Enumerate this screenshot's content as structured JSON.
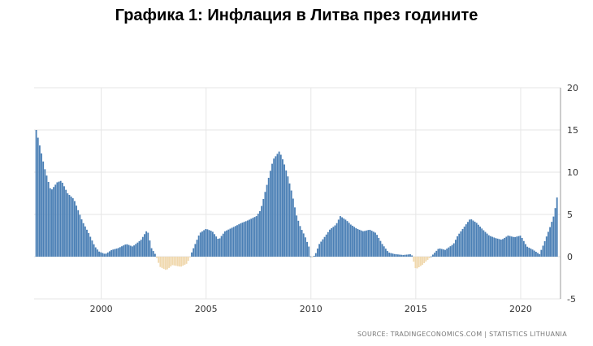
{
  "title": "Графика 1: Инфлация в Литва през годините",
  "source": "SOURCE: TRADINGECONOMICS.COM  |  STATISTICS LITHUANIA",
  "colors": {
    "positive": "#4a7fb5",
    "negative": "#f0d8ad",
    "grid": "#e6e6e6",
    "axis": "#999999"
  },
  "chart_data": {
    "type": "bar",
    "title": "Графика 1: Инфлация в Литва през годините",
    "xlabel": "",
    "ylabel": "",
    "xlim": [
      1996.8,
      2021.9
    ],
    "ylim": [
      -5,
      20
    ],
    "x_ticks": [
      2000,
      2005,
      2010,
      2015,
      2020
    ],
    "y_ticks": [
      20,
      15,
      10,
      5,
      0,
      -5
    ],
    "grid": true,
    "y_axis_position": "right",
    "anchor_points": [
      [
        1996.9,
        15
      ],
      [
        1997.1,
        12.8
      ],
      [
        1997.3,
        10.5
      ],
      [
        1997.6,
        7.8
      ],
      [
        1997.9,
        8.8
      ],
      [
        1998.1,
        9.0
      ],
      [
        1998.4,
        7.5
      ],
      [
        1998.7,
        6.8
      ],
      [
        1998.9,
        5.5
      ],
      [
        1999.1,
        4.2
      ],
      [
        1999.4,
        2.8
      ],
      [
        1999.7,
        1.2
      ],
      [
        1999.9,
        0.6
      ],
      [
        2000.2,
        0.3
      ],
      [
        2000.5,
        0.8
      ],
      [
        2000.8,
        1.0
      ],
      [
        2001.2,
        1.5
      ],
      [
        2001.5,
        1.2
      ],
      [
        2001.9,
        2.0
      ],
      [
        2002.2,
        3.2
      ],
      [
        2002.4,
        1.0
      ],
      [
        2002.6,
        0.2
      ],
      [
        2002.8,
        -1.2
      ],
      [
        2003.1,
        -1.6
      ],
      [
        2003.4,
        -1.0
      ],
      [
        2003.8,
        -1.2
      ],
      [
        2004.1,
        -0.8
      ],
      [
        2004.4,
        1.0
      ],
      [
        2004.7,
        2.8
      ],
      [
        2005.0,
        3.3
      ],
      [
        2005.3,
        3.0
      ],
      [
        2005.6,
        2.0
      ],
      [
        2005.9,
        3.0
      ],
      [
        2006.3,
        3.5
      ],
      [
        2006.7,
        4.0
      ],
      [
        2007.0,
        4.3
      ],
      [
        2007.4,
        4.8
      ],
      [
        2007.6,
        5.5
      ],
      [
        2007.8,
        7.5
      ],
      [
        2008.0,
        9.5
      ],
      [
        2008.2,
        11.5
      ],
      [
        2008.5,
        12.5
      ],
      [
        2008.7,
        11.2
      ],
      [
        2008.9,
        9.5
      ],
      [
        2009.1,
        7.5
      ],
      [
        2009.3,
        5.0
      ],
      [
        2009.5,
        3.5
      ],
      [
        2009.7,
        2.5
      ],
      [
        2009.9,
        1.2
      ],
      [
        2010.0,
        -0.2
      ],
      [
        2010.2,
        0.2
      ],
      [
        2010.4,
        1.5
      ],
      [
        2010.7,
        2.5
      ],
      [
        2010.9,
        3.2
      ],
      [
        2011.2,
        3.8
      ],
      [
        2011.4,
        4.8
      ],
      [
        2011.7,
        4.3
      ],
      [
        2011.9,
        3.8
      ],
      [
        2012.2,
        3.3
      ],
      [
        2012.5,
        3.0
      ],
      [
        2012.8,
        3.2
      ],
      [
        2013.1,
        2.8
      ],
      [
        2013.4,
        1.5
      ],
      [
        2013.7,
        0.5
      ],
      [
        2014.0,
        0.3
      ],
      [
        2014.4,
        0.2
      ],
      [
        2014.8,
        0.3
      ],
      [
        2015.0,
        -1.5
      ],
      [
        2015.3,
        -1.0
      ],
      [
        2015.6,
        -0.3
      ],
      [
        2015.8,
        0.2
      ],
      [
        2016.1,
        1.0
      ],
      [
        2016.4,
        0.8
      ],
      [
        2016.8,
        1.5
      ],
      [
        2017.0,
        2.5
      ],
      [
        2017.3,
        3.5
      ],
      [
        2017.6,
        4.5
      ],
      [
        2017.9,
        4.0
      ],
      [
        2018.2,
        3.2
      ],
      [
        2018.5,
        2.5
      ],
      [
        2018.8,
        2.2
      ],
      [
        2019.1,
        2.0
      ],
      [
        2019.4,
        2.5
      ],
      [
        2019.7,
        2.3
      ],
      [
        2020.0,
        2.5
      ],
      [
        2020.3,
        1.2
      ],
      [
        2020.6,
        0.8
      ],
      [
        2020.9,
        0.3
      ],
      [
        2021.1,
        1.5
      ],
      [
        2021.4,
        3.5
      ],
      [
        2021.6,
        5.0
      ],
      [
        2021.8,
        8.0
      ]
    ]
  }
}
